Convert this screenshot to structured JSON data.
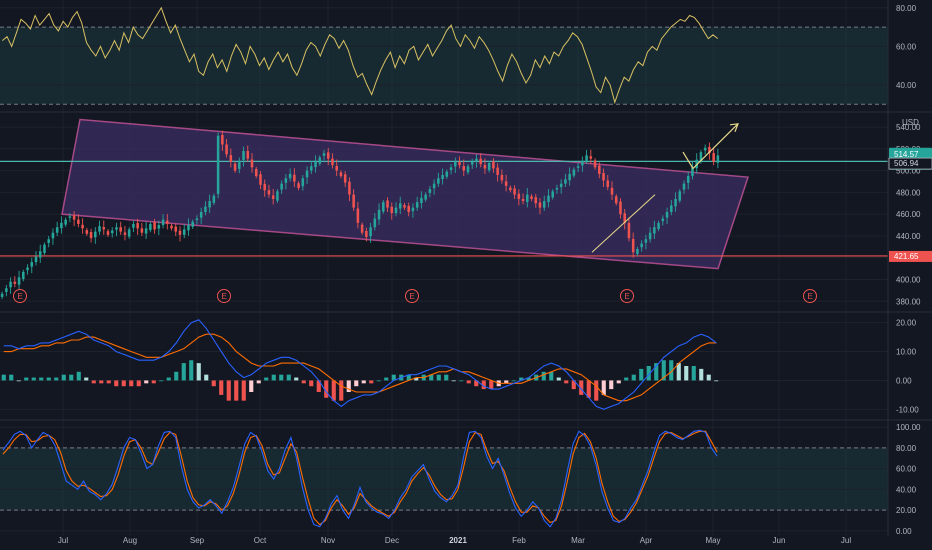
{
  "chart_data": [
    {
      "type": "line",
      "panel": "rsi",
      "ylim": [
        27,
        83
      ],
      "yticks": [
        "80.00",
        "60.00",
        "40.00"
      ],
      "levels": [
        70,
        30
      ],
      "band": [
        30,
        70
      ],
      "colors": {
        "line": "#d8c062",
        "band": "#1c3b3e",
        "level": "#787b86"
      },
      "values": [
        63,
        65,
        60,
        67,
        74,
        72,
        69,
        76,
        71,
        74,
        77,
        71,
        68,
        73,
        70,
        75,
        78,
        72,
        62,
        58,
        55,
        60,
        54,
        58,
        63,
        58,
        67,
        62,
        70,
        66,
        64,
        68,
        72,
        76,
        80,
        73,
        67,
        71,
        64,
        58,
        52,
        56,
        47,
        45,
        52,
        56,
        49,
        53,
        47,
        55,
        61,
        57,
        51,
        60,
        56,
        50,
        54,
        48,
        53,
        57,
        52,
        56,
        49,
        45,
        51,
        58,
        62,
        60,
        55,
        61,
        66,
        64,
        59,
        63,
        58,
        50,
        44,
        46,
        40,
        35,
        42,
        48,
        53,
        57,
        49,
        55,
        51,
        58,
        60,
        53,
        57,
        61,
        55,
        59,
        63,
        68,
        71,
        64,
        60,
        66,
        63,
        59,
        65,
        62,
        58,
        53,
        47,
        42,
        50,
        56,
        52,
        46,
        41,
        45,
        53,
        49,
        55,
        51,
        57,
        55,
        60,
        63,
        67,
        65,
        61,
        54,
        47,
        39,
        36,
        44,
        40,
        31,
        38,
        44,
        42,
        48,
        52,
        50,
        57,
        60,
        58,
        64,
        67,
        70,
        72,
        74,
        73,
        76,
        75,
        72,
        68,
        64,
        66,
        64
      ]
    },
    {
      "type": "candlestick",
      "panel": "price",
      "currency": "USD",
      "ylim": [
        372,
        552
      ],
      "yticks": [
        "540.00",
        "520.00",
        "500.00",
        "480.00",
        "460.00",
        "440.00",
        "420.00",
        "400.00",
        "380.00"
      ],
      "x_labels": [
        "Jul",
        "Aug",
        "Sep",
        "Oct",
        "Nov",
        "Dec",
        "2021",
        "Feb",
        "Mar",
        "Apr",
        "May",
        "Jun",
        "Jul"
      ],
      "x_label_bold": "2021",
      "closes": [
        387,
        392,
        398,
        396,
        402,
        407,
        411,
        416,
        421,
        426,
        432,
        437,
        443,
        448,
        452,
        455,
        458,
        455,
        451,
        447,
        442,
        438,
        444,
        449,
        446,
        441,
        445,
        448,
        444,
        441,
        446,
        451,
        447,
        443,
        447,
        451,
        446,
        450,
        455,
        451,
        447,
        444,
        441,
        446,
        450,
        453,
        456,
        462,
        467,
        472,
        477,
        532,
        524,
        515,
        508,
        500,
        509,
        518,
        511,
        503,
        495,
        487,
        482,
        478,
        474,
        481,
        488,
        493,
        497,
        490,
        484,
        493,
        500,
        504,
        508,
        512,
        516,
        511,
        505,
        500,
        495,
        489,
        478,
        466,
        452,
        443,
        439,
        448,
        456,
        464,
        471,
        466,
        461,
        466,
        470,
        466,
        462,
        466,
        471,
        475,
        478,
        483,
        488,
        493,
        496,
        499,
        503,
        508,
        505,
        500,
        504,
        508,
        511,
        506,
        502,
        507,
        502,
        496,
        491,
        486,
        482,
        478,
        474,
        472,
        478,
        474,
        470,
        466,
        472,
        477,
        481,
        484,
        488,
        492,
        497,
        501,
        504,
        509,
        514,
        511,
        503,
        497,
        491,
        485,
        478,
        470,
        460,
        452,
        438,
        425,
        428,
        433,
        437,
        443,
        448,
        452,
        456,
        462,
        468,
        474,
        481,
        488,
        495,
        503,
        510,
        517,
        521,
        516,
        508,
        514
      ],
      "last_price": "514.57",
      "countdown": "03:34:36",
      "secondary_price": "506.94",
      "support_level": 421.65,
      "support_label": "421.65",
      "resistance_level": 508.5,
      "channel": {
        "start_top": 547,
        "end_top": 494,
        "start_bottom": 460,
        "end_bottom": 410
      },
      "projection": [
        [
          502,
          517
        ],
        [
          542,
          543
        ]
      ],
      "earnings_marker": "E",
      "earnings_count": 5,
      "colors": {
        "up": "#26a69a",
        "down": "#ef5350",
        "channel": "#d65aa8",
        "channel_fill": "#3a2d63",
        "support": "#ef5350",
        "resistance": "#4db6ac",
        "projection": "#e8d98a",
        "price_tag": "#26a69a"
      }
    },
    {
      "type": "bar",
      "panel": "macd",
      "ylim": [
        -13,
        23
      ],
      "yticks": [
        "20.00",
        "10.00",
        "0.00",
        "-10.00"
      ],
      "macd": [
        12,
        12,
        11,
        12,
        12,
        13,
        13,
        14,
        15,
        16,
        17,
        16,
        14,
        13,
        12,
        10,
        9,
        8,
        7,
        7,
        7,
        8,
        10,
        13,
        17,
        20,
        21,
        18,
        14,
        10,
        6,
        3,
        1,
        2,
        4,
        6,
        7,
        8,
        8,
        7,
        5,
        3,
        0,
        -4,
        -7,
        -9,
        -7,
        -6,
        -5,
        -5,
        -4,
        -2,
        0,
        1,
        2,
        2,
        3,
        4,
        5,
        5,
        4,
        3,
        2,
        0,
        -2,
        -3,
        -3,
        -2,
        -1,
        0,
        1,
        3,
        5,
        6,
        5,
        3,
        0,
        -3,
        -6,
        -9,
        -10,
        -9,
        -8,
        -6,
        -4,
        -1,
        2,
        5,
        8,
        10,
        12,
        13,
        15,
        16,
        15,
        13
      ],
      "signal": [
        10,
        10,
        11,
        11,
        11,
        12,
        12,
        13,
        13,
        14,
        14,
        15,
        15,
        14,
        13,
        12,
        11,
        10,
        9,
        8,
        8,
        8,
        9,
        10,
        11,
        13,
        15,
        16,
        16,
        15,
        13,
        10,
        8,
        6,
        5,
        5,
        5,
        6,
        6,
        6,
        6,
        5,
        4,
        2,
        0,
        -2,
        -3,
        -4,
        -4,
        -4,
        -4,
        -3,
        -2,
        -1,
        0,
        1,
        1,
        2,
        3,
        3,
        4,
        3,
        3,
        2,
        1,
        0,
        -1,
        -1,
        -1,
        -1,
        0,
        1,
        2,
        3,
        4,
        4,
        3,
        2,
        0,
        -2,
        -5,
        -6,
        -7,
        -7,
        -6,
        -5,
        -3,
        -1,
        1,
        3,
        6,
        8,
        10,
        12,
        13,
        13
      ],
      "colors": {
        "macd": "#2962ff",
        "signal": "#ff6d00",
        "hist_up_strong": "#26a69a",
        "hist_up_weak": "#b2dfdb",
        "hist_down_strong": "#ef5350",
        "hist_down_weak": "#ffcdd2"
      }
    },
    {
      "type": "line",
      "panel": "stochastic",
      "ylim": [
        -5,
        105
      ],
      "yticks": [
        "100.00",
        "80.00",
        "60.00",
        "40.00",
        "20.00",
        "0.00"
      ],
      "levels": [
        80,
        20
      ],
      "band": [
        20,
        80
      ],
      "k": [
        78,
        85,
        93,
        96,
        92,
        80,
        88,
        95,
        92,
        83,
        66,
        48,
        44,
        40,
        48,
        38,
        35,
        30,
        36,
        45,
        62,
        80,
        90,
        88,
        75,
        60,
        64,
        82,
        95,
        96,
        90,
        62,
        40,
        28,
        22,
        25,
        30,
        24,
        17,
        28,
        42,
        62,
        84,
        95,
        91,
        76,
        58,
        50,
        60,
        78,
        90,
        70,
        42,
        20,
        6,
        4,
        12,
        26,
        34,
        20,
        12,
        25,
        42,
        28,
        22,
        18,
        16,
        12,
        20,
        32,
        40,
        52,
        58,
        64,
        50,
        38,
        32,
        28,
        34,
        44,
        72,
        95,
        96,
        90,
        72,
        60,
        70,
        54,
        36,
        22,
        14,
        20,
        28,
        22,
        10,
        4,
        12,
        30,
        58,
        84,
        96,
        92,
        82,
        63,
        38,
        22,
        10,
        8,
        12,
        22,
        30,
        44,
        58,
        76,
        92,
        96,
        94,
        90,
        88,
        92,
        96,
        97,
        95,
        80,
        72
      ],
      "d": [
        74,
        80,
        88,
        93,
        93,
        86,
        87,
        91,
        92,
        88,
        76,
        58,
        48,
        43,
        44,
        41,
        37,
        33,
        34,
        40,
        54,
        72,
        86,
        88,
        80,
        67,
        64,
        76,
        89,
        95,
        93,
        72,
        48,
        32,
        25,
        24,
        28,
        26,
        20,
        24,
        36,
        54,
        76,
        90,
        92,
        82,
        64,
        54,
        56,
        70,
        84,
        76,
        52,
        30,
        12,
        6,
        10,
        22,
        30,
        24,
        16,
        22,
        36,
        30,
        24,
        20,
        17,
        14,
        18,
        28,
        36,
        48,
        55,
        61,
        54,
        43,
        35,
        30,
        31,
        40,
        62,
        86,
        95,
        93,
        78,
        65,
        67,
        58,
        42,
        28,
        18,
        18,
        24,
        22,
        14,
        8,
        10,
        24,
        48,
        74,
        90,
        94,
        86,
        70,
        46,
        28,
        14,
        9,
        11,
        18,
        27,
        40,
        53,
        70,
        86,
        94,
        95,
        92,
        89,
        91,
        94,
        96,
        96,
        86,
        76
      ],
      "colors": {
        "k": "#2962ff",
        "d": "#ff6d00",
        "band": "#1c3b3e",
        "level": "#787b86"
      }
    }
  ]
}
